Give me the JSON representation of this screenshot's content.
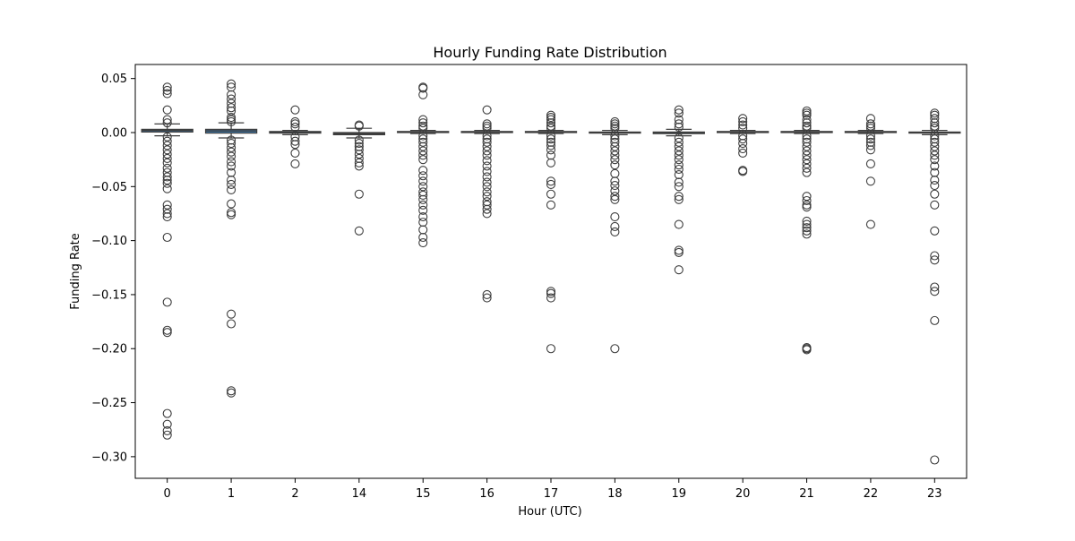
{
  "chart_data": {
    "type": "box",
    "title": "Hourly Funding Rate Distribution",
    "xlabel": "Hour (UTC)",
    "ylabel": "Funding Rate",
    "ylim": [
      -0.32,
      0.063
    ],
    "yticks": [
      0.05,
      0.0,
      -0.05,
      -0.1,
      -0.15,
      -0.2,
      -0.25,
      -0.3
    ],
    "ytick_labels": [
      "0.05",
      "0.00",
      "−0.05",
      "−0.10",
      "−0.15",
      "−0.20",
      "−0.25",
      "−0.30"
    ],
    "grid": false,
    "colors": {
      "box_fill": "#3f77a6",
      "edge": "#3d3d3d",
      "axes": "#000000"
    },
    "categories": [
      "0",
      "1",
      "2",
      "14",
      "15",
      "16",
      "17",
      "18",
      "19",
      "20",
      "21",
      "22",
      "23"
    ],
    "boxes": [
      {
        "category": "0",
        "q1": 0.0005,
        "median": 0.002,
        "q3": 0.003,
        "whisker_low": -0.003,
        "whisker_high": 0.008,
        "outliers": [
          0.042,
          0.039,
          0.036,
          0.021,
          0.012,
          0.009,
          -0.004,
          -0.008,
          -0.012,
          -0.016,
          -0.02,
          -0.024,
          -0.028,
          -0.033,
          -0.037,
          -0.041,
          -0.044,
          -0.047,
          -0.052,
          -0.067,
          -0.071,
          -0.075,
          -0.078,
          -0.097,
          -0.157,
          -0.183,
          -0.185,
          -0.26,
          -0.27,
          -0.276,
          -0.28
        ]
      },
      {
        "category": "1",
        "q1": -0.0005,
        "median": 0.0015,
        "q3": 0.003,
        "whisker_low": -0.005,
        "whisker_high": 0.009,
        "outliers": [
          0.045,
          0.042,
          0.035,
          0.031,
          0.027,
          0.023,
          0.02,
          0.014,
          0.012,
          0.01,
          -0.007,
          -0.01,
          -0.014,
          -0.018,
          -0.022,
          -0.027,
          -0.031,
          -0.037,
          -0.044,
          -0.048,
          -0.053,
          -0.066,
          -0.074,
          -0.076,
          -0.168,
          -0.177,
          -0.239,
          -0.241
        ]
      },
      {
        "category": "2",
        "q1": -0.0005,
        "median": 0.0,
        "q3": 0.001,
        "whisker_low": -0.002,
        "whisker_high": 0.002,
        "outliers": [
          0.021,
          0.01,
          0.008,
          0.005,
          -0.004,
          -0.008,
          -0.011,
          -0.019,
          -0.029
        ]
      },
      {
        "category": "14",
        "q1": -0.002,
        "median": -0.001,
        "q3": 0.0,
        "whisker_low": -0.005,
        "whisker_high": 0.004,
        "outliers": [
          0.007,
          0.006,
          -0.007,
          -0.01,
          -0.013,
          -0.016,
          -0.02,
          -0.024,
          -0.028,
          -0.031,
          -0.057,
          -0.091
        ]
      },
      {
        "category": "15",
        "q1": 0.0,
        "median": 0.0005,
        "q3": 0.001,
        "whisker_low": -0.001,
        "whisker_high": 0.002,
        "outliers": [
          0.042,
          0.041,
          0.035,
          0.012,
          0.009,
          0.006,
          0.004,
          -0.003,
          -0.006,
          -0.009,
          -0.013,
          -0.017,
          -0.021,
          -0.025,
          -0.035,
          -0.04,
          -0.045,
          -0.05,
          -0.055,
          -0.058,
          -0.062,
          -0.067,
          -0.072,
          -0.078,
          -0.083,
          -0.09,
          -0.097,
          -0.102
        ]
      },
      {
        "category": "16",
        "q1": 0.0,
        "median": 0.0005,
        "q3": 0.001,
        "whisker_low": -0.001,
        "whisker_high": 0.002,
        "outliers": [
          0.021,
          0.008,
          0.006,
          0.004,
          -0.003,
          -0.006,
          -0.009,
          -0.013,
          -0.017,
          -0.021,
          -0.026,
          -0.031,
          -0.036,
          -0.041,
          -0.046,
          -0.05,
          -0.055,
          -0.059,
          -0.064,
          -0.067,
          -0.071,
          -0.075,
          -0.15,
          -0.153
        ]
      },
      {
        "category": "17",
        "q1": 0.0,
        "median": 0.0005,
        "q3": 0.001,
        "whisker_low": -0.001,
        "whisker_high": 0.002,
        "outliers": [
          0.016,
          0.014,
          0.012,
          0.009,
          0.006,
          0.004,
          -0.003,
          -0.006,
          -0.009,
          -0.012,
          -0.016,
          -0.021,
          -0.028,
          -0.045,
          -0.048,
          -0.057,
          -0.067,
          -0.147,
          -0.149,
          -0.153,
          -0.2
        ]
      },
      {
        "category": "18",
        "q1": -0.0005,
        "median": 0.0,
        "q3": 0.0005,
        "whisker_low": -0.002,
        "whisker_high": 0.002,
        "outliers": [
          0.01,
          0.008,
          0.006,
          0.004,
          -0.003,
          -0.006,
          -0.009,
          -0.013,
          -0.017,
          -0.021,
          -0.025,
          -0.03,
          -0.038,
          -0.045,
          -0.049,
          -0.054,
          -0.059,
          -0.062,
          -0.078,
          -0.087,
          -0.092,
          -0.2
        ]
      },
      {
        "category": "19",
        "q1": -0.001,
        "median": 0.0,
        "q3": 0.0005,
        "whisker_low": -0.003,
        "whisker_high": 0.003,
        "outliers": [
          0.021,
          0.018,
          0.012,
          0.008,
          0.005,
          -0.005,
          -0.009,
          -0.013,
          -0.017,
          -0.021,
          -0.025,
          -0.03,
          -0.034,
          -0.039,
          -0.046,
          -0.05,
          -0.059,
          -0.062,
          -0.085,
          -0.109,
          -0.111,
          -0.127
        ]
      },
      {
        "category": "20",
        "q1": 0.0,
        "median": 0.0005,
        "q3": 0.001,
        "whisker_low": -0.001,
        "whisker_high": 0.002,
        "outliers": [
          0.013,
          0.01,
          0.007,
          0.004,
          -0.003,
          -0.006,
          -0.01,
          -0.015,
          -0.019,
          -0.035,
          -0.036
        ]
      },
      {
        "category": "21",
        "q1": 0.0,
        "median": 0.0005,
        "q3": 0.001,
        "whisker_low": -0.001,
        "whisker_high": 0.002,
        "outliers": [
          0.02,
          0.018,
          0.016,
          0.012,
          0.009,
          0.006,
          0.004,
          -0.003,
          -0.006,
          -0.009,
          -0.013,
          -0.017,
          -0.021,
          -0.025,
          -0.029,
          -0.033,
          -0.037,
          -0.059,
          -0.063,
          -0.067,
          -0.069,
          -0.082,
          -0.085,
          -0.088,
          -0.091,
          -0.094,
          -0.199,
          -0.2,
          -0.201
        ]
      },
      {
        "category": "22",
        "q1": 0.0,
        "median": 0.0005,
        "q3": 0.001,
        "whisker_low": -0.001,
        "whisker_high": 0.002,
        "outliers": [
          0.013,
          0.008,
          0.006,
          0.004,
          -0.003,
          -0.006,
          -0.009,
          -0.012,
          -0.016,
          -0.029,
          -0.045,
          -0.085
        ]
      },
      {
        "category": "23",
        "q1": -0.0005,
        "median": 0.0,
        "q3": 0.0005,
        "whisker_low": -0.002,
        "whisker_high": 0.002,
        "outliers": [
          0.018,
          0.016,
          0.013,
          0.009,
          0.006,
          0.004,
          -0.003,
          -0.006,
          -0.009,
          -0.013,
          -0.017,
          -0.021,
          -0.025,
          -0.031,
          -0.037,
          -0.044,
          -0.049,
          -0.057,
          -0.067,
          -0.091,
          -0.114,
          -0.118,
          -0.143,
          -0.147,
          -0.174,
          -0.303
        ]
      }
    ]
  }
}
